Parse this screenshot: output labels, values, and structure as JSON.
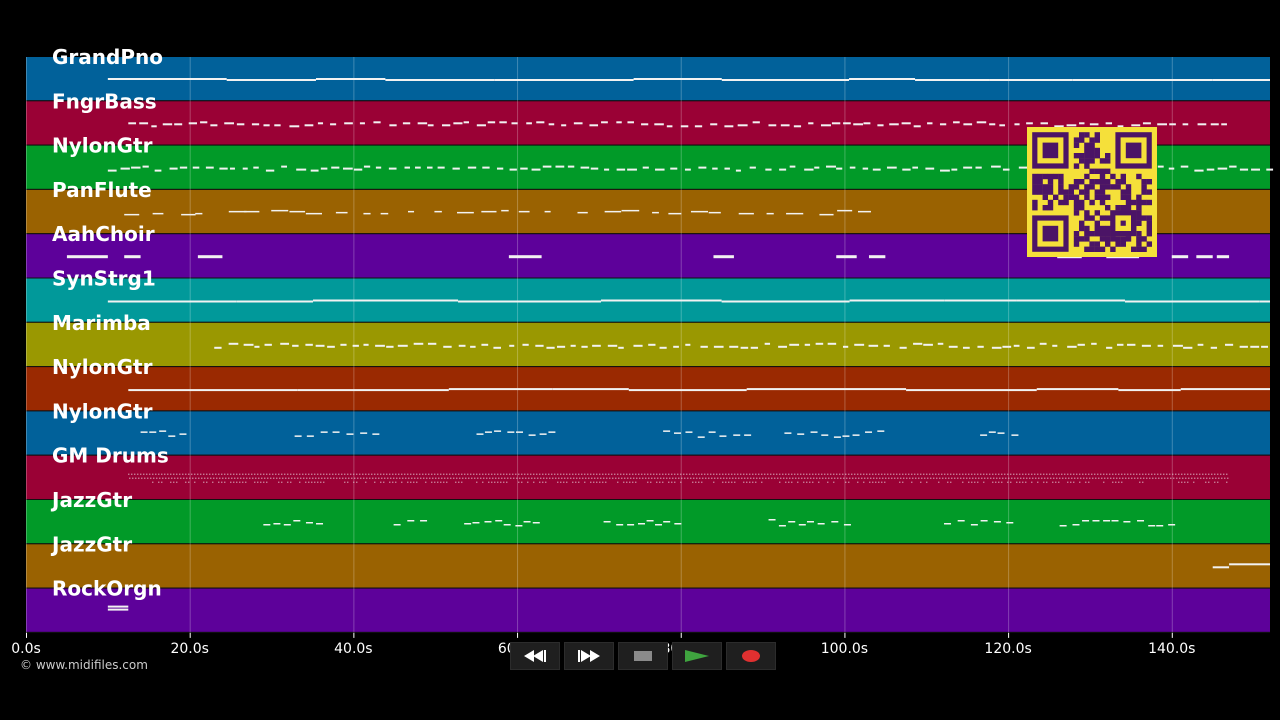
{
  "copyright": "© www.midifiles.com",
  "axis": {
    "unit": "s",
    "max_seconds": 152,
    "ticks": [
      "0.0s",
      "20.0s",
      "40.0s",
      "60.0s",
      "80.0s",
      "100.0s",
      "120.0s",
      "140.0s"
    ]
  },
  "tracks": [
    {
      "name": "GrandPno",
      "color": "#01619a",
      "style": "long",
      "start": 10,
      "end": 152
    },
    {
      "name": "FngrBass",
      "color": "#9a0135",
      "style": "dash",
      "start": 12.5,
      "end": 147
    },
    {
      "name": "NylonGtr",
      "color": "#019a28",
      "style": "dash",
      "start": 10,
      "end": 152
    },
    {
      "name": "PanFlute",
      "color": "#9a6201",
      "style": "sparse",
      "start": 12,
      "end": 102
    },
    {
      "name": "AahChoir",
      "color": "#5d019a",
      "style": "blocks",
      "start": 5,
      "end": 147
    },
    {
      "name": "SynStrg1",
      "color": "#01999a",
      "style": "long",
      "start": 10,
      "end": 152
    },
    {
      "name": "Marimba",
      "color": "#9a9801",
      "style": "dash",
      "start": 23,
      "end": 152
    },
    {
      "name": "NylonGtr",
      "color": "#9a2901",
      "style": "long",
      "start": 12.5,
      "end": 152
    },
    {
      "name": "NylonGtr",
      "color": "#01619a",
      "style": "phrase",
      "start": 14,
      "end": 125
    },
    {
      "name": "GM Drums",
      "color": "#9a0135",
      "style": "drums",
      "start": 12.5,
      "end": 147
    },
    {
      "name": "JazzGtr",
      "color": "#019a28",
      "style": "phrase",
      "start": 29,
      "end": 140
    },
    {
      "name": "JazzGtr",
      "color": "#9a6201",
      "style": "end",
      "start": 145,
      "end": 152
    },
    {
      "name": "RockOrgn",
      "color": "#5d019a",
      "style": "tiny",
      "start": 10,
      "end": 12.5
    }
  ],
  "transport": {
    "rewind_icon": "rewind-icon",
    "forward_icon": "fast-forward-icon",
    "stop_icon": "stop-icon",
    "play_icon": "play-icon",
    "record_icon": "record-icon",
    "play_color": "#3fa43f",
    "record_color": "#e03030"
  },
  "qr": {
    "fg": "#4b1466",
    "bg": "#f5e03a"
  }
}
